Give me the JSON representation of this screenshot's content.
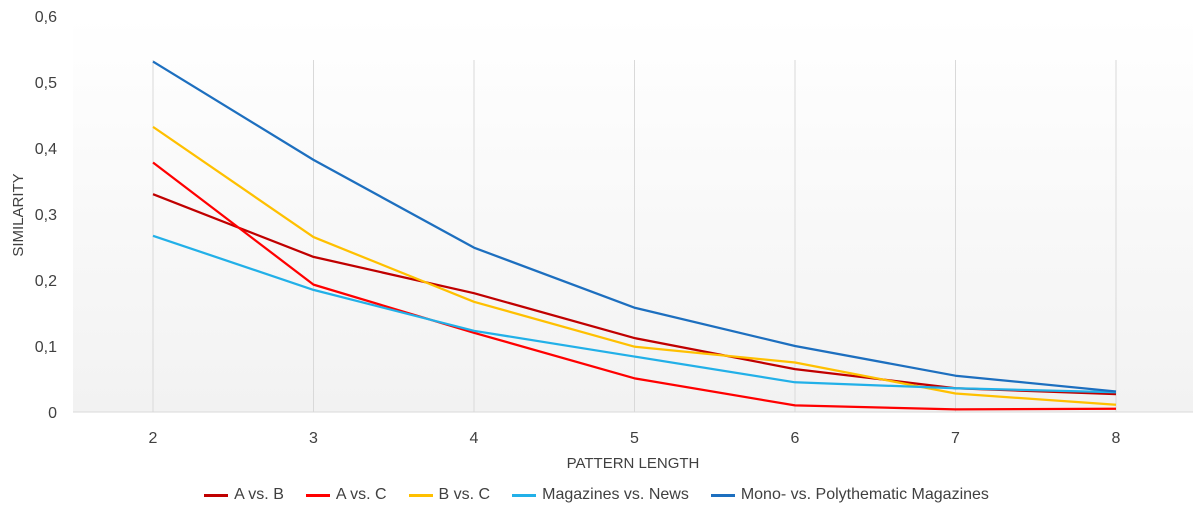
{
  "chart_data": {
    "type": "line",
    "x": [
      2,
      3,
      4,
      5,
      6,
      7,
      8
    ],
    "xlabel": "PATTERN LENGTH",
    "ylabel": "SIMILARITY",
    "ylim": [
      0,
      0.6
    ],
    "yticks": [
      "0",
      "0,1",
      "0,2",
      "0,3",
      "0,4",
      "0,5",
      "0,6"
    ],
    "grid": "vertical",
    "legend_position": "bottom",
    "series": [
      {
        "name": "A vs. B",
        "color": "#c00000",
        "values": [
          0.33,
          0.235,
          0.18,
          0.112,
          0.065,
          0.036,
          0.027
        ]
      },
      {
        "name": "A vs. C",
        "color": "#ff0000",
        "values": [
          0.378,
          0.193,
          0.12,
          0.051,
          0.01,
          0.004,
          0.005
        ]
      },
      {
        "name": "B vs. C",
        "color": "#ffc000",
        "values": [
          0.432,
          0.265,
          0.167,
          0.099,
          0.075,
          0.028,
          0.011
        ]
      },
      {
        "name": "Magazines vs. News",
        "color": "#22b0e8",
        "values": [
          0.267,
          0.185,
          0.123,
          0.084,
          0.045,
          0.036,
          0.03
        ]
      },
      {
        "name": "Mono- vs. Polythematic Magazines",
        "color": "#1d6fbf",
        "values": [
          0.531,
          0.382,
          0.249,
          0.158,
          0.1,
          0.055,
          0.031
        ]
      }
    ]
  }
}
